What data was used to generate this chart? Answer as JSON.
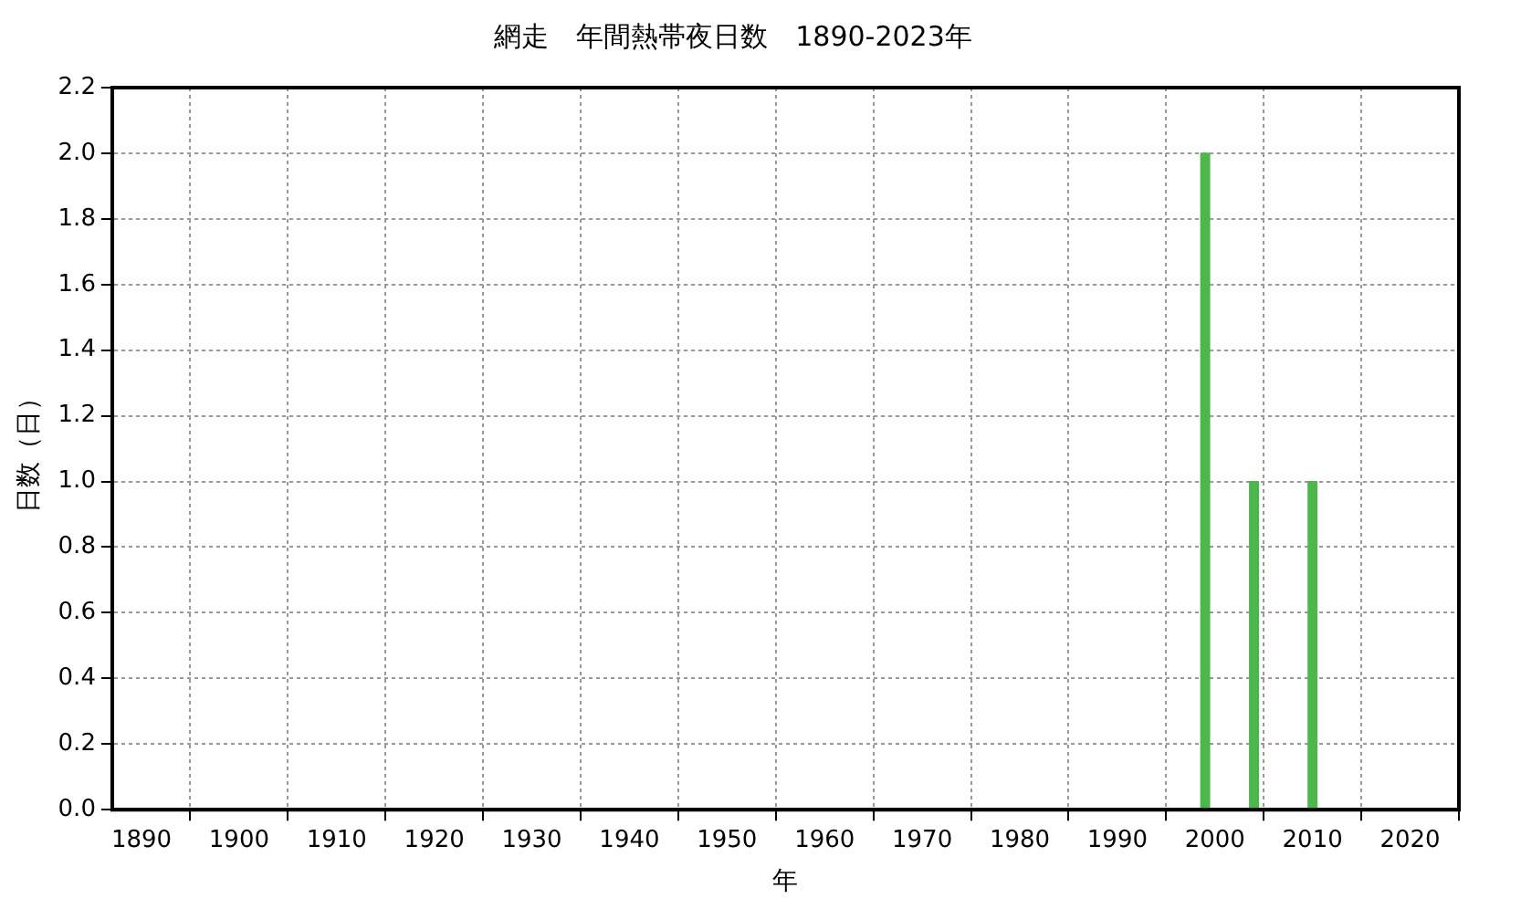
{
  "chart_data": {
    "type": "bar",
    "title": "網走　年間熱帯夜日数　1890-2023年",
    "xlabel": "年",
    "ylabel": "日数（日）",
    "x": [
      1999,
      2004,
      2010
    ],
    "values": [
      2,
      1,
      1
    ],
    "color": "#4cb84c",
    "xlim": [
      1887,
      2025
    ],
    "xticks": [
      1890,
      1900,
      1910,
      1920,
      1930,
      1940,
      1950,
      1960,
      1970,
      1980,
      1990,
      2000,
      2010,
      2020
    ],
    "ylim": [
      0,
      2.2
    ],
    "yticks": [
      {
        "value": 0,
        "label": "0.0"
      },
      {
        "value": 0.2,
        "label": "0.2"
      },
      {
        "value": 0.4,
        "label": "0.4"
      },
      {
        "value": 0.6,
        "label": "0.6"
      },
      {
        "value": 0.8,
        "label": "0.8"
      },
      {
        "value": 1,
        "label": "1.0"
      },
      {
        "value": 1.2,
        "label": "1.2"
      },
      {
        "value": 1.4,
        "label": "1.4"
      },
      {
        "value": 1.6,
        "label": "1.6"
      },
      {
        "value": 1.8,
        "label": "1.8"
      },
      {
        "value": 2,
        "label": "2.0"
      },
      {
        "value": 2.2,
        "label": "2.2"
      }
    ],
    "grid": true,
    "legend": false
  }
}
